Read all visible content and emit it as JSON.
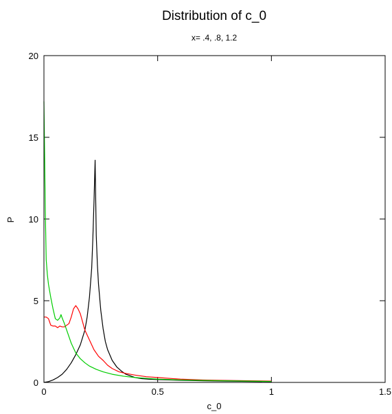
{
  "chart_data": {
    "type": "line",
    "title": "Distribution of c_0",
    "subtitle": "x= .4, .8, 1.2",
    "xlabel": "c_0",
    "ylabel": "P",
    "xlim": [
      0,
      1.5
    ],
    "ylim": [
      0,
      20
    ],
    "xticks": [
      0,
      0.5,
      1,
      1.5
    ],
    "xtick_labels": [
      "0",
      "0.5",
      "1",
      "1.5"
    ],
    "yticks": [
      0,
      5,
      10,
      15,
      20
    ],
    "ytick_labels": [
      "0",
      "5",
      "10",
      "15",
      "20"
    ],
    "grid": false,
    "legend": "none",
    "series": [
      {
        "color": "#000000",
        "x": [
          0,
          0.02,
          0.04,
          0.06,
          0.08,
          0.1,
          0.12,
          0.14,
          0.16,
          0.18,
          0.19,
          0.2,
          0.21,
          0.215,
          0.22,
          0.225,
          0.23,
          0.235,
          0.24,
          0.25,
          0.26,
          0.27,
          0.28,
          0.3,
          0.32,
          0.34,
          0.36,
          0.38,
          0.4,
          0.43,
          0.46,
          0.5,
          0.55,
          0.6,
          0.7,
          0.8,
          0.9,
          1.0
        ],
        "y": [
          0.0,
          0.05,
          0.15,
          0.3,
          0.5,
          0.8,
          1.2,
          1.7,
          2.3,
          3.2,
          4.0,
          5.2,
          7.0,
          8.8,
          11.0,
          13.6,
          9.0,
          7.2,
          6.0,
          4.4,
          3.3,
          2.5,
          2.0,
          1.35,
          0.95,
          0.7,
          0.5,
          0.4,
          0.3,
          0.23,
          0.2,
          0.17,
          0.15,
          0.13,
          0.1,
          0.08,
          0.06,
          0.05
        ]
      },
      {
        "color": "#ff0000",
        "x": [
          0,
          0.01,
          0.02,
          0.03,
          0.04,
          0.05,
          0.06,
          0.07,
          0.08,
          0.09,
          0.1,
          0.11,
          0.12,
          0.13,
          0.14,
          0.15,
          0.16,
          0.17,
          0.18,
          0.2,
          0.22,
          0.24,
          0.26,
          0.28,
          0.3,
          0.33,
          0.36,
          0.4,
          0.45,
          0.5,
          0.6,
          0.7,
          0.8,
          0.9,
          1.0
        ],
        "y": [
          4.0,
          4.0,
          3.9,
          3.5,
          3.45,
          3.45,
          3.35,
          3.45,
          3.4,
          3.4,
          3.5,
          3.6,
          4.0,
          4.5,
          4.7,
          4.5,
          4.2,
          3.7,
          3.2,
          2.6,
          2.0,
          1.6,
          1.35,
          1.05,
          0.85,
          0.65,
          0.55,
          0.45,
          0.35,
          0.3,
          0.2,
          0.15,
          0.12,
          0.1,
          0.08
        ]
      },
      {
        "color": "#00cc00",
        "x": [
          0,
          0.003,
          0.006,
          0.01,
          0.015,
          0.02,
          0.03,
          0.04,
          0.05,
          0.06,
          0.07,
          0.075,
          0.08,
          0.09,
          0.1,
          0.12,
          0.14,
          0.16,
          0.18,
          0.2,
          0.23,
          0.26,
          0.3,
          0.35,
          0.4,
          0.45,
          0.5,
          0.6,
          0.7,
          0.8,
          0.9,
          1.0
        ],
        "y": [
          17.2,
          14.0,
          10.5,
          7.5,
          6.6,
          6.0,
          5.2,
          4.5,
          3.9,
          3.8,
          3.95,
          4.15,
          3.95,
          3.6,
          3.2,
          2.4,
          1.8,
          1.45,
          1.2,
          1.0,
          0.8,
          0.65,
          0.5,
          0.38,
          0.3,
          0.25,
          0.2,
          0.15,
          0.12,
          0.1,
          0.08,
          0.06
        ]
      }
    ]
  }
}
